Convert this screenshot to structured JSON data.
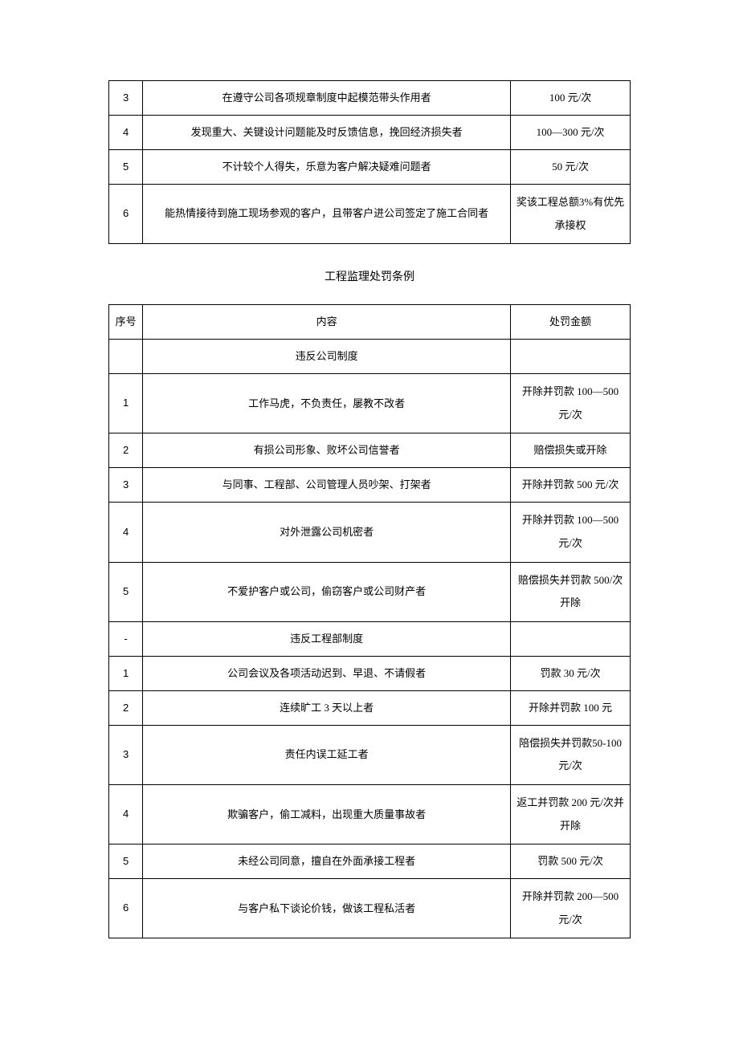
{
  "table1": {
    "columns": {
      "num_width": 42,
      "content_width": 455,
      "amount_width": 148
    },
    "rows": [
      {
        "num": "3",
        "content": "在遵守公司各项规章制度中起模范带头作用者",
        "amount": "100 元/次"
      },
      {
        "num": "4",
        "content": "发现重大、关键设计问题能及时反馈信息，挽回经济损失者",
        "amount": "100—300 元/次"
      },
      {
        "num": "5",
        "content": "不计较个人得失，乐意为客户解决疑难问题者",
        "amount": "50 元/次"
      },
      {
        "num": "6",
        "content": "能热情接待到施工现场参观的客户，且带客户进公司签定了施工合同者",
        "amount": "奖该工程总额3%有优先承接权"
      }
    ]
  },
  "section_title": "工程监理处罚条例",
  "table2": {
    "headers": {
      "num": "序号",
      "content": "内容",
      "amount": "处罚金额"
    },
    "rows": [
      {
        "num": "",
        "content": "违反公司制度",
        "amount": ""
      },
      {
        "num": "1",
        "content": "工作马虎，不负责任，屡教不改者",
        "amount": "开除并罚款 100—500 元/次"
      },
      {
        "num": "2",
        "content": "有损公司形象、败坏公司信誉者",
        "amount": "赔偿损失或开除"
      },
      {
        "num": "3",
        "content": "与同事、工程部、公司管理人员吵架、打架者",
        "amount": "开除并罚款 500 元/次"
      },
      {
        "num": "4",
        "content": "对外泄露公司机密者",
        "amount": "开除并罚款 100—500 元/次"
      },
      {
        "num": "5",
        "content": "不爱护客户或公司，偷窃客户或公司财产者",
        "amount": "赔偿损失并罚款 500/次开除"
      },
      {
        "num": "-",
        "content": "违反工程部制度",
        "amount": ""
      },
      {
        "num": "1",
        "content": "公司会议及各项活动迟到、早退、不请假者",
        "amount": "罚款 30 元/次"
      },
      {
        "num": "2",
        "content": "连续旷工 3 天以上者",
        "amount": "开除并罚款 100 元"
      },
      {
        "num": "3",
        "content": "责任内误工延工者",
        "amount": "陪偿损失并罚款50-100 元/次"
      },
      {
        "num": "4",
        "content": "欺骗客户，偷工减料，出现重大质量事故者",
        "amount": "返工并罚款 200 元/次并开除"
      },
      {
        "num": "5",
        "content": "未经公司同意，擅自在外面承接工程者",
        "amount": "罚款 500 元/次"
      },
      {
        "num": "6",
        "content": "与客户私下谈论价钱，做该工程私活者",
        "amount": "开除并罚款 200—500 元/次"
      }
    ]
  },
  "style": {
    "font_size": 13,
    "title_font_size": 14,
    "border_color": "#000000",
    "background_color": "#ffffff",
    "text_color": "#000000",
    "line_height": 2
  }
}
